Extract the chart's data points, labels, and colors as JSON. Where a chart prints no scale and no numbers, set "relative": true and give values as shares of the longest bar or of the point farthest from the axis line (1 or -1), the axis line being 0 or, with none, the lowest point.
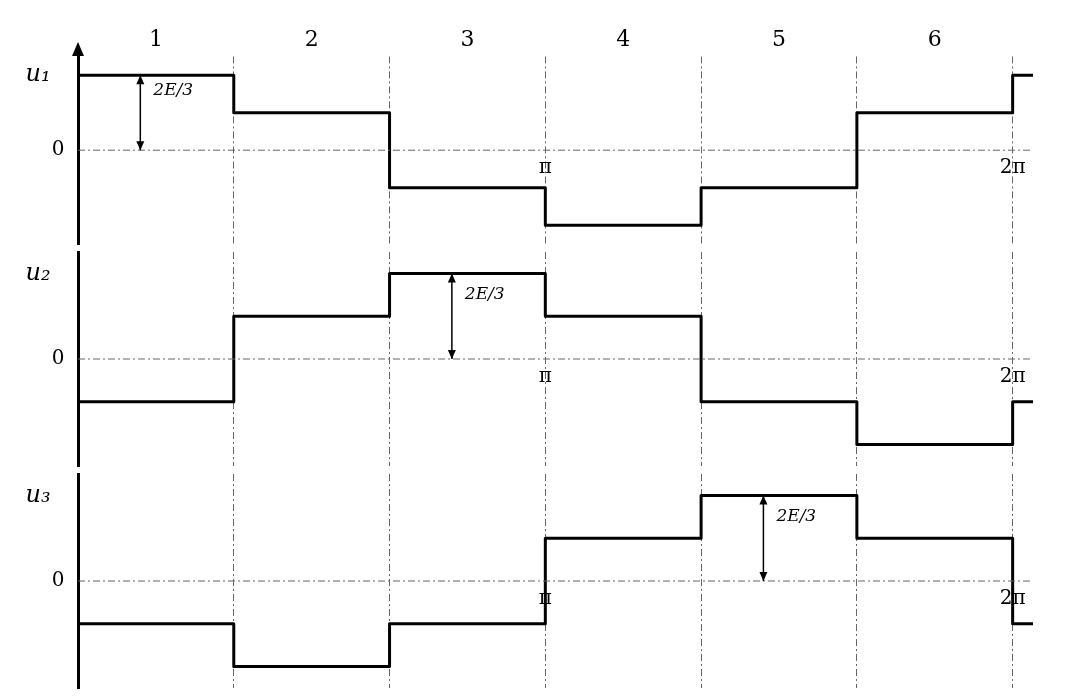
{
  "chart_data": [
    {
      "type": "step",
      "relative": true,
      "ylabel": "u₁",
      "x": [
        0,
        1.0472,
        2.0944,
        3.1416,
        4.1888,
        5.236,
        6.2832,
        6.42
      ],
      "series": [
        {
          "color": "#000000",
          "values": [
            1,
            0.5,
            -0.5,
            -1,
            -0.5,
            0.5,
            1,
            1
          ]
        }
      ],
      "xlim": [
        0,
        6.42
      ],
      "xticks": [
        {
          "value": 1.0472,
          "label": null
        },
        {
          "value": 2.0944,
          "label": null
        },
        {
          "value": 3.1416,
          "label": "π"
        },
        {
          "value": 4.1888,
          "label": null
        },
        {
          "value": 5.236,
          "label": null
        },
        {
          "value": 6.2832,
          "label": "2π"
        }
      ],
      "x2lim": [
        0,
        6.42
      ],
      "x2ticks": [
        {
          "value": 0.5236,
          "label": "1"
        },
        {
          "value": 1.5708,
          "label": "2"
        },
        {
          "value": 2.618,
          "label": "3"
        },
        {
          "value": 3.6652,
          "label": "4"
        },
        {
          "value": 4.7124,
          "label": "5"
        },
        {
          "value": 5.7596,
          "label": "6"
        }
      ],
      "grid": "x",
      "ref_lines": [
        {
          "axis": "y",
          "value": 0,
          "label": "0",
          "line_style": "dashed"
        }
      ],
      "annotations": [
        "2E/3"
      ]
    },
    {
      "type": "step",
      "relative": true,
      "ylabel": "u₂",
      "x": [
        0,
        1.0472,
        2.0944,
        3.1416,
        4.1888,
        5.236,
        6.2832,
        6.42
      ],
      "series": [
        {
          "color": "#000000",
          "values": [
            -0.5,
            0.5,
            1,
            0.5,
            -0.5,
            -1,
            -0.5,
            -0.5
          ]
        }
      ],
      "xlim": [
        0,
        6.42
      ],
      "xticks": [
        {
          "value": 1.0472,
          "label": null
        },
        {
          "value": 2.0944,
          "label": null
        },
        {
          "value": 3.1416,
          "label": "π"
        },
        {
          "value": 4.1888,
          "label": null
        },
        {
          "value": 5.236,
          "label": null
        },
        {
          "value": 6.2832,
          "label": "2π"
        }
      ],
      "grid": "x",
      "ref_lines": [
        {
          "axis": "y",
          "value": 0,
          "label": "0",
          "line_style": "dashed"
        }
      ],
      "annotations": [
        "2E/3"
      ]
    },
    {
      "type": "step",
      "relative": true,
      "ylabel": "u₃",
      "x": [
        0,
        1.0472,
        2.0944,
        3.1416,
        4.1888,
        5.236,
        6.2832,
        6.42
      ],
      "series": [
        {
          "color": "#000000",
          "values": [
            -0.5,
            -1,
            -0.5,
            0.5,
            1,
            0.5,
            -0.5,
            -0.5
          ]
        }
      ],
      "xlim": [
        0,
        6.42
      ],
      "xticks": [
        {
          "value": 1.0472,
          "label": null
        },
        {
          "value": 2.0944,
          "label": null
        },
        {
          "value": 3.1416,
          "label": "π"
        },
        {
          "value": 4.1888,
          "label": null
        },
        {
          "value": 5.236,
          "label": null
        },
        {
          "value": 6.2832,
          "label": "2π"
        }
      ],
      "grid": "x",
      "ref_lines": [
        {
          "axis": "y",
          "value": 0,
          "label": "0",
          "line_style": "dashed"
        }
      ],
      "annotations": [
        "2E/3"
      ]
    }
  ]
}
